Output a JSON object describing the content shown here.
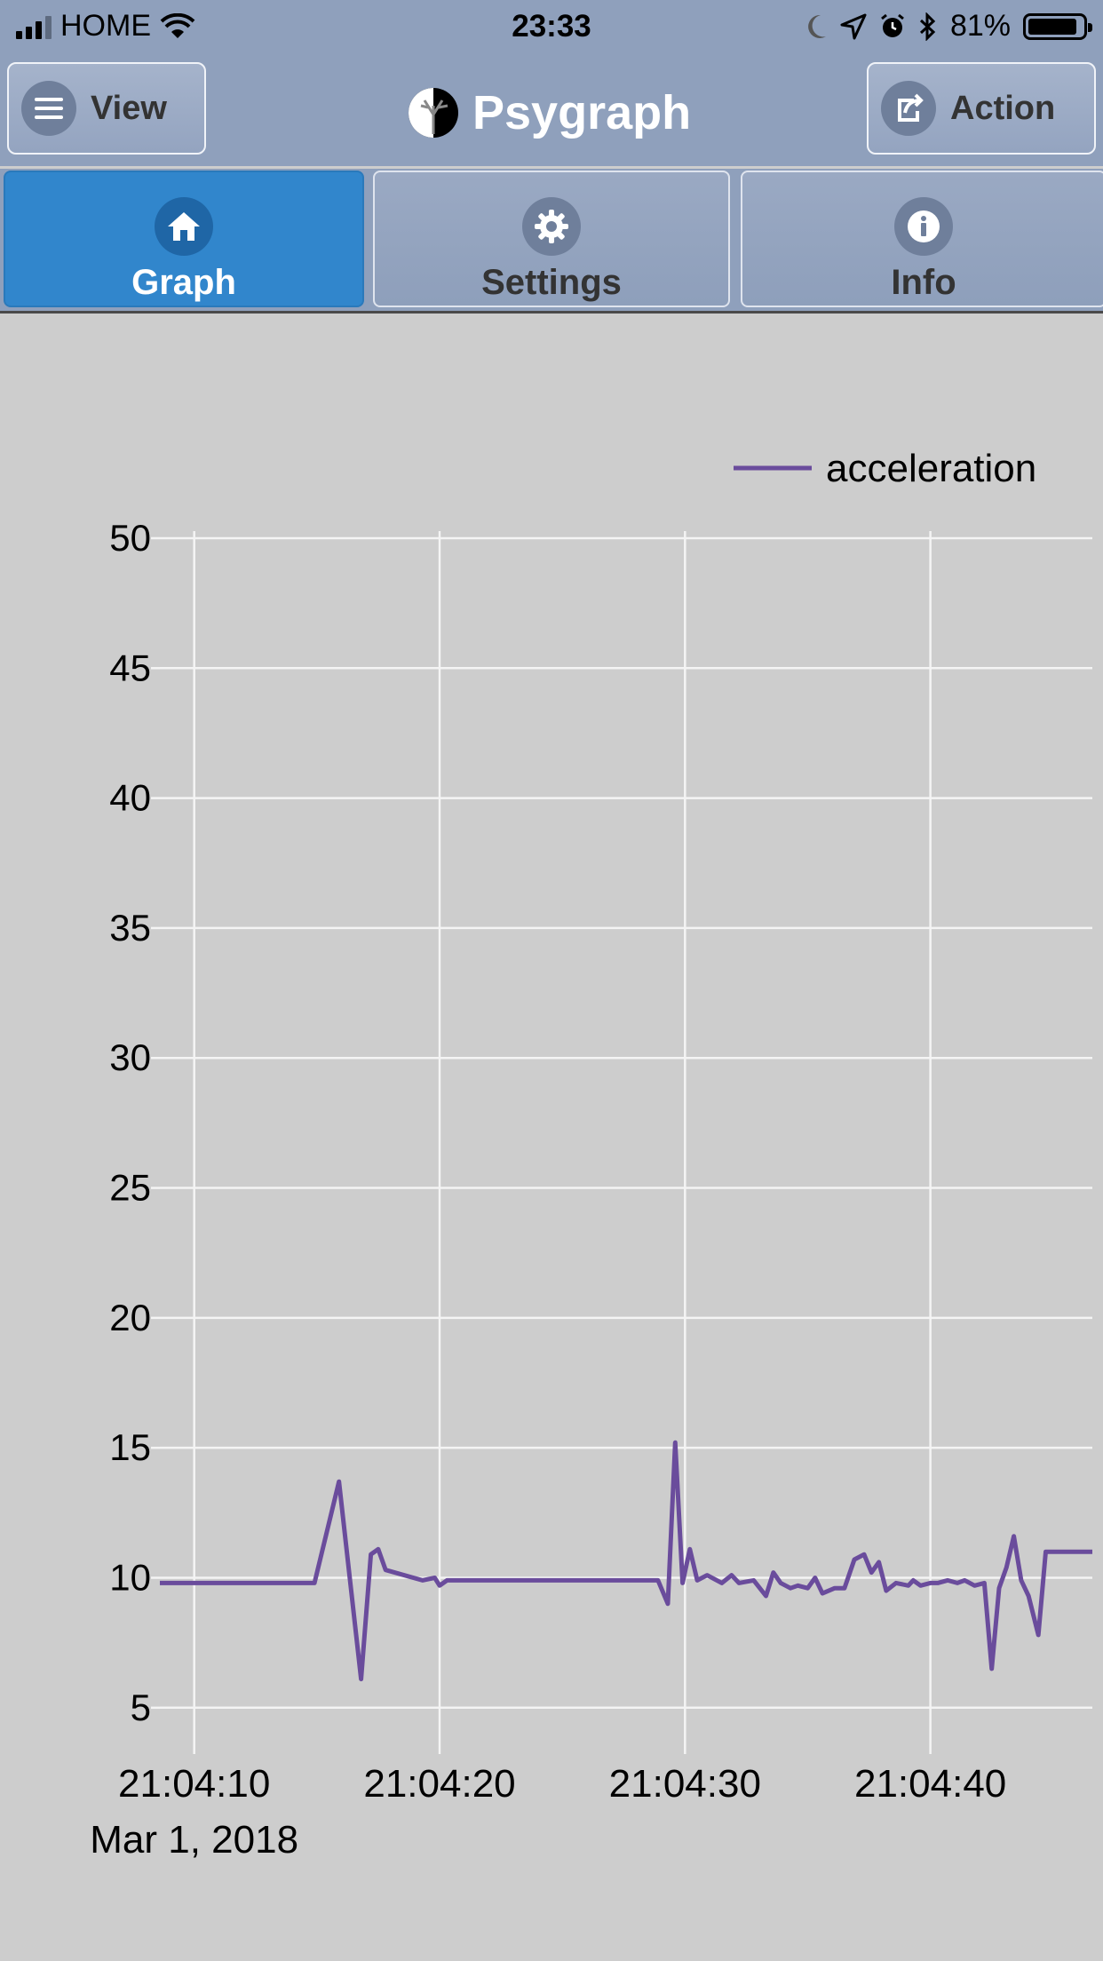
{
  "status": {
    "carrier": "HOME",
    "time": "23:33",
    "battery": "81%"
  },
  "header": {
    "view_label": "View",
    "app_title": "Psygraph",
    "action_label": "Action"
  },
  "tabs": [
    {
      "label": "Graph",
      "icon": "home-icon",
      "active": true
    },
    {
      "label": "Settings",
      "icon": "gear-icon",
      "active": false
    },
    {
      "label": "Info",
      "icon": "info-icon",
      "active": false
    }
  ],
  "colors": {
    "header_bg": "#8fa0bc",
    "active_tab": "#3186cc",
    "chart_bg": "#cdcdcd",
    "series_line": "#6a4c9c"
  },
  "chart_data": {
    "type": "line",
    "title": "",
    "xlabel": "",
    "ylabel": "",
    "date_label": "Mar 1, 2018",
    "ylim": [
      3.9,
      50
    ],
    "xlim": [
      "21:04:08.6",
      "21:04:46.6"
    ],
    "yticks": [
      5,
      10,
      15,
      20,
      25,
      30,
      35,
      40,
      45,
      50
    ],
    "xticks": [
      "21:04:10",
      "21:04:20",
      "21:04:30",
      "21:04:40"
    ],
    "grid": true,
    "legend": "top-right",
    "series": [
      {
        "name": "acceleration",
        "color": "#6a4c9c",
        "x": [
          "21:04:08.6",
          "21:04:14.9",
          "21:04:15.9",
          "21:04:16.8",
          "21:04:17.2",
          "21:04:17.5",
          "21:04:17.8",
          "21:04:19.3",
          "21:04:19.8",
          "21:04:20.0",
          "21:04:20.3",
          "21:04:22.1",
          "21:04:28.9",
          "21:04:29.3",
          "21:04:29.6",
          "21:04:29.9",
          "21:04:30.2",
          "21:04:30.5",
          "21:04:30.9",
          "21:04:31.5",
          "21:04:31.9",
          "21:04:32.2",
          "21:04:32.8",
          "21:04:33.3",
          "21:04:33.6",
          "21:04:33.9",
          "21:04:34.3",
          "21:04:34.6",
          "21:04:35.0",
          "21:04:35.3",
          "21:04:35.6",
          "21:04:36.1",
          "21:04:36.5",
          "21:04:36.9",
          "21:04:37.3",
          "21:04:37.6",
          "21:04:37.9",
          "21:04:38.2",
          "21:04:38.6",
          "21:04:39.1",
          "21:04:39.3",
          "21:04:39.6",
          "21:04:40.0",
          "21:04:40.3",
          "21:04:40.7",
          "21:04:41.1",
          "21:04:41.4",
          "21:04:41.8",
          "21:04:42.2",
          "21:04:42.5",
          "21:04:42.8",
          "21:04:43.1",
          "21:04:43.4",
          "21:04:43.7",
          "21:04:44.0",
          "21:04:44.4",
          "21:04:44.7",
          "21:04:45.2",
          "21:04:46.6"
        ],
        "y": [
          9.8,
          9.8,
          13.7,
          6.1,
          10.9,
          11.1,
          10.3,
          9.9,
          10.0,
          9.7,
          9.9,
          9.9,
          9.9,
          9.0,
          15.2,
          9.8,
          11.1,
          9.9,
          10.1,
          9.8,
          10.1,
          9.8,
          9.9,
          9.3,
          10.2,
          9.8,
          9.6,
          9.7,
          9.6,
          10.0,
          9.4,
          9.6,
          9.6,
          10.7,
          10.9,
          10.2,
          10.6,
          9.5,
          9.8,
          9.7,
          9.9,
          9.7,
          9.8,
          9.8,
          9.9,
          9.8,
          9.9,
          9.7,
          9.8,
          6.5,
          9.6,
          10.4,
          11.6,
          9.9,
          9.3,
          7.8,
          11.0,
          11.0,
          11.0
        ]
      }
    ]
  }
}
